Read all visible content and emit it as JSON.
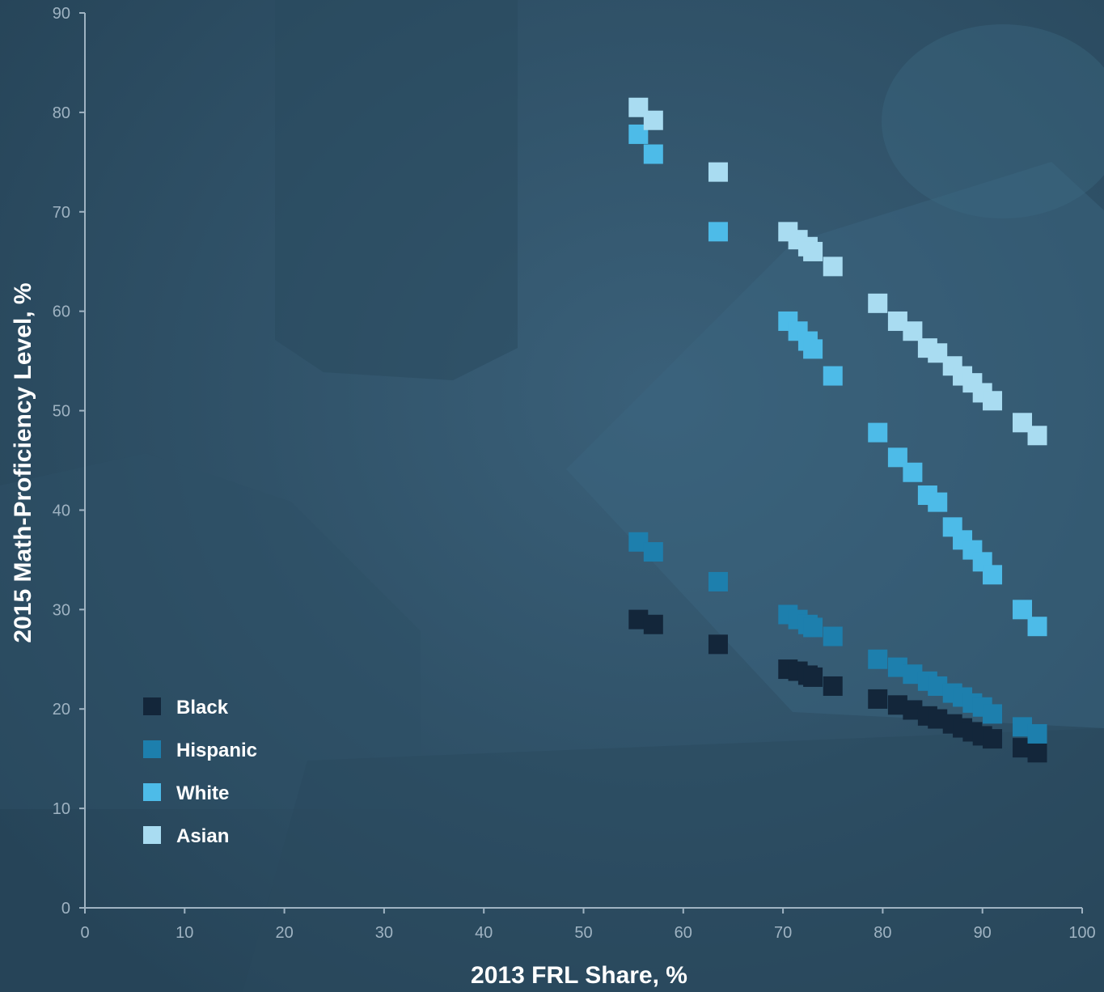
{
  "chart_data": {
    "type": "scatter",
    "title": "",
    "xlabel": "2013 FRL Share, %",
    "ylabel": "2015 Math-Proficiency Level, %",
    "xlim": [
      0,
      100
    ],
    "ylim": [
      0,
      90
    ],
    "xticks": [
      0,
      10,
      20,
      30,
      40,
      50,
      60,
      70,
      80,
      90,
      100
    ],
    "yticks": [
      0,
      10,
      20,
      30,
      40,
      50,
      60,
      70,
      80,
      90
    ],
    "grid": false,
    "legend_position": "lower-left",
    "series": [
      {
        "name": "Black",
        "color": "#13263a",
        "points": [
          [
            55.5,
            29
          ],
          [
            57,
            28.5
          ],
          [
            63.5,
            26.5
          ],
          [
            70.5,
            24
          ],
          [
            71.5,
            23.8
          ],
          [
            72.5,
            23.4
          ],
          [
            73,
            23.2
          ],
          [
            75,
            22.3
          ],
          [
            79.5,
            21
          ],
          [
            81.5,
            20.4
          ],
          [
            83,
            19.9
          ],
          [
            84.5,
            19.3
          ],
          [
            85.5,
            19
          ],
          [
            87,
            18.5
          ],
          [
            88,
            18.1
          ],
          [
            89,
            17.7
          ],
          [
            90,
            17.3
          ],
          [
            91,
            17
          ],
          [
            94,
            16.1
          ],
          [
            95.5,
            15.6
          ]
        ]
      },
      {
        "name": "Hispanic",
        "color": "#1d7fad",
        "points": [
          [
            55.5,
            36.8
          ],
          [
            57,
            35.8
          ],
          [
            63.5,
            32.8
          ],
          [
            70.5,
            29.5
          ],
          [
            71.5,
            29
          ],
          [
            72.5,
            28.5
          ],
          [
            73,
            28.2
          ],
          [
            75,
            27.3
          ],
          [
            79.5,
            25
          ],
          [
            81.5,
            24.2
          ],
          [
            83,
            23.5
          ],
          [
            84.5,
            22.8
          ],
          [
            85.5,
            22.3
          ],
          [
            87,
            21.6
          ],
          [
            88,
            21.2
          ],
          [
            89,
            20.6
          ],
          [
            90,
            20.2
          ],
          [
            91,
            19.5
          ],
          [
            94,
            18.2
          ],
          [
            95.5,
            17.5
          ]
        ]
      },
      {
        "name": "White",
        "color": "#4dbbe8",
        "points": [
          [
            55.5,
            77.8
          ],
          [
            57,
            75.8
          ],
          [
            63.5,
            68
          ],
          [
            70.5,
            59
          ],
          [
            71.5,
            58
          ],
          [
            72.5,
            57
          ],
          [
            73,
            56.2
          ],
          [
            75,
            53.5
          ],
          [
            79.5,
            47.8
          ],
          [
            81.5,
            45.3
          ],
          [
            83,
            43.8
          ],
          [
            84.5,
            41.5
          ],
          [
            85.5,
            40.8
          ],
          [
            87,
            38.3
          ],
          [
            88,
            37
          ],
          [
            89,
            36
          ],
          [
            90,
            34.8
          ],
          [
            91,
            33.5
          ],
          [
            94,
            30
          ],
          [
            95.5,
            28.3
          ]
        ]
      },
      {
        "name": "Asian",
        "color": "#a9dcf1",
        "points": [
          [
            55.5,
            80.5
          ],
          [
            57,
            79.2
          ],
          [
            63.5,
            74
          ],
          [
            70.5,
            68
          ],
          [
            71.5,
            67.2
          ],
          [
            72.5,
            66.5
          ],
          [
            73,
            66
          ],
          [
            75,
            64.5
          ],
          [
            79.5,
            60.8
          ],
          [
            81.5,
            59
          ],
          [
            83,
            58
          ],
          [
            84.5,
            56.3
          ],
          [
            85.5,
            55.8
          ],
          [
            87,
            54.5
          ],
          [
            88,
            53.5
          ],
          [
            89,
            52.8
          ],
          [
            90,
            51.8
          ],
          [
            91,
            51
          ],
          [
            94,
            48.8
          ],
          [
            95.5,
            47.5
          ]
        ]
      }
    ]
  }
}
